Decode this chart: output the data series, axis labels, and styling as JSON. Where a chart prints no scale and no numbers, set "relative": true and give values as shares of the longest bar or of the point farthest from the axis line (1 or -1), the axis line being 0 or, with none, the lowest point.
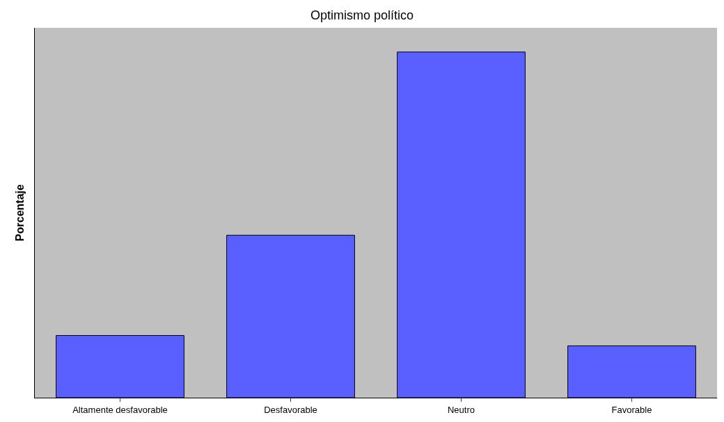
{
  "chart_data": {
    "type": "bar",
    "title": "Optimismo político",
    "ylabel": "Porcentaje",
    "relative": true,
    "categories": [
      "Altamente desfavorable",
      "Desfavorable",
      "Neutro",
      "Favorable"
    ],
    "values": [
      0.18,
      0.47,
      1,
      0.15
    ],
    "color": "#5a60ff"
  }
}
